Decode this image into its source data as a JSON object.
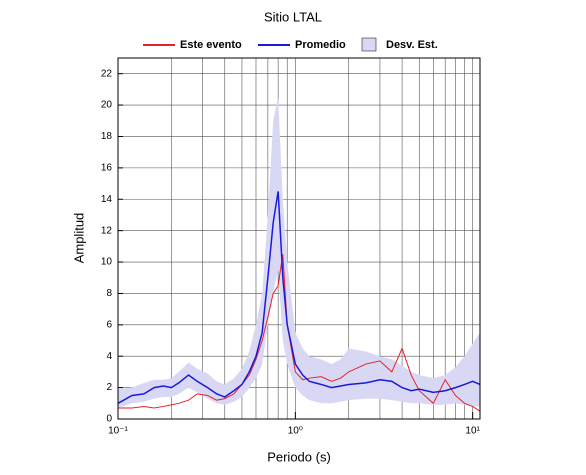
{
  "chart_data": {
    "type": "line",
    "title": "Sitio LTAL",
    "xlabel": "Periodo (s)",
    "ylabel": "Amplitud",
    "xscale": "log",
    "x": [
      0.1,
      0.12,
      0.14,
      0.16,
      0.18,
      0.2,
      0.22,
      0.25,
      0.28,
      0.32,
      0.36,
      0.4,
      0.45,
      0.5,
      0.55,
      0.6,
      0.65,
      0.7,
      0.75,
      0.8,
      0.85,
      0.9,
      1.0,
      1.1,
      1.2,
      1.4,
      1.6,
      1.8,
      2.0,
      2.5,
      3.0,
      3.5,
      4.0,
      4.5,
      5,
      6,
      7,
      8,
      9,
      10,
      11
    ],
    "series": [
      {
        "name": "Este evento",
        "color": "#e8202a",
        "values": [
          0.7,
          0.7,
          0.8,
          0.7,
          0.8,
          0.9,
          1.0,
          1.2,
          1.6,
          1.5,
          1.2,
          1.3,
          1.6,
          2.2,
          2.8,
          3.8,
          5,
          6.5,
          8,
          8.5,
          10.5,
          6,
          3,
          2.5,
          2.6,
          2.7,
          2.4,
          2.6,
          3.0,
          3.5,
          3.7,
          3.0,
          4.5,
          2.8,
          1.8,
          1.0,
          2.5,
          1.5,
          1.0,
          0.8,
          0.5
        ]
      },
      {
        "name": "Promedio",
        "color": "#1a1adb",
        "values": [
          1.0,
          1.5,
          1.6,
          2.0,
          2.1,
          2.0,
          2.3,
          2.8,
          2.4,
          2.0,
          1.6,
          1.4,
          1.8,
          2.2,
          3.0,
          4.0,
          5.5,
          9,
          12.5,
          14.5,
          9,
          6,
          3.5,
          2.8,
          2.4,
          2.2,
          2.0,
          2.1,
          2.2,
          2.3,
          2.5,
          2.4,
          2.0,
          1.8,
          1.9,
          1.7,
          1.8,
          2.0,
          2.2,
          2.4,
          2.2
        ]
      },
      {
        "name": "Desv. Est.",
        "color": "#d8d8f4",
        "band": true,
        "upper": [
          1.9,
          2.0,
          2.3,
          2.5,
          2.5,
          2.6,
          3.0,
          3.6,
          3.2,
          2.9,
          2.4,
          2.2,
          2.6,
          3.2,
          4.3,
          6,
          8,
          13,
          19,
          20.5,
          14,
          10,
          5.5,
          4.5,
          4.0,
          3.8,
          3.5,
          3.8,
          4.5,
          4.3,
          4.0,
          3.8,
          3.4,
          3.0,
          2.8,
          2.6,
          2.8,
          3.3,
          4,
          4.8,
          5.5
        ],
        "lower": [
          0.7,
          1.0,
          1.1,
          1.3,
          1.4,
          1.4,
          1.6,
          2.0,
          1.7,
          1.3,
          1.0,
          0.9,
          1.1,
          1.4,
          2.0,
          2.6,
          3.5,
          6,
          8,
          9.5,
          5,
          3.5,
          2.0,
          1.5,
          1.2,
          1.0,
          1.0,
          1.1,
          1.2,
          1.3,
          1.3,
          1.2,
          1.1,
          1.0,
          1.0,
          0.9,
          0.9,
          1.0,
          0.9,
          0.8,
          0.8
        ]
      }
    ],
    "xlim": [
      0.1,
      11
    ],
    "ylim": [
      0,
      23
    ],
    "xticks": [
      {
        "value": 0.1,
        "label": "10⁻¹"
      },
      {
        "value": 1,
        "label": "10⁰"
      },
      {
        "value": 10,
        "label": "10¹"
      }
    ],
    "xminor_ticks": [
      0.2,
      0.3,
      0.4,
      0.5,
      0.6,
      0.7,
      0.8,
      0.9,
      2,
      3,
      4,
      5,
      6,
      7,
      8,
      9
    ],
    "yticks": [
      0,
      2,
      4,
      6,
      8,
      10,
      12,
      14,
      16,
      18,
      20,
      22
    ],
    "grid": true
  }
}
